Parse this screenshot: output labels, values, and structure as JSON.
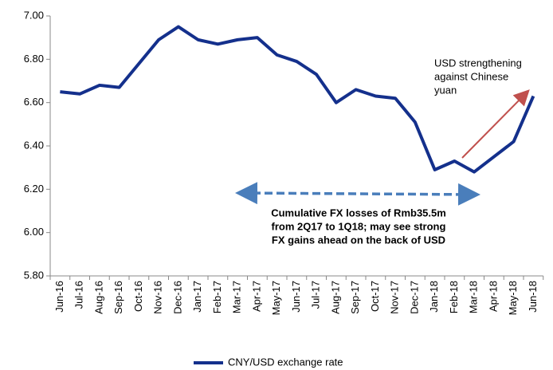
{
  "chart_data": {
    "type": "line",
    "categories": [
      "Jun-16",
      "Jul-16",
      "Aug-16",
      "Sep-16",
      "Oct-16",
      "Nov-16",
      "Dec-16",
      "Jan-17",
      "Feb-17",
      "Mar-17",
      "Apr-17",
      "May-17",
      "Jun-17",
      "Jul-17",
      "Aug-17",
      "Sep-17",
      "Oct-17",
      "Nov-17",
      "Dec-17",
      "Jan-18",
      "Feb-18",
      "Mar-18",
      "Apr-18",
      "May-18",
      "Jun-18"
    ],
    "series": [
      {
        "name": "CNY/USD exchange rate",
        "color": "#14308c",
        "values": [
          6.65,
          6.64,
          6.68,
          6.67,
          6.78,
          6.89,
          6.95,
          6.89,
          6.87,
          6.89,
          6.9,
          6.82,
          6.79,
          6.73,
          6.6,
          6.66,
          6.63,
          6.62,
          6.51,
          6.29,
          6.33,
          6.28,
          6.35,
          6.42,
          6.63
        ]
      }
    ],
    "ylim": [
      5.8,
      7.0
    ],
    "yticks": [
      {
        "value": 5.8,
        "label": "5.80"
      },
      {
        "value": 6.0,
        "label": "6.00"
      },
      {
        "value": 6.2,
        "label": "6.20"
      },
      {
        "value": 6.4,
        "label": "6.40"
      },
      {
        "value": 6.6,
        "label": "6.60"
      },
      {
        "value": 6.8,
        "label": "6.80"
      },
      {
        "value": 7.0,
        "label": "7.00"
      }
    ],
    "grid": false,
    "legend": "bottom",
    "annotations": [
      [
        "USD strengthening",
        "against Chinese",
        "yuan"
      ],
      [
        "Cumulative FX losses of Rmb35.5m",
        "from 2Q17 to 1Q18; may see strong",
        "FX gains ahead on the back of USD"
      ]
    ]
  }
}
